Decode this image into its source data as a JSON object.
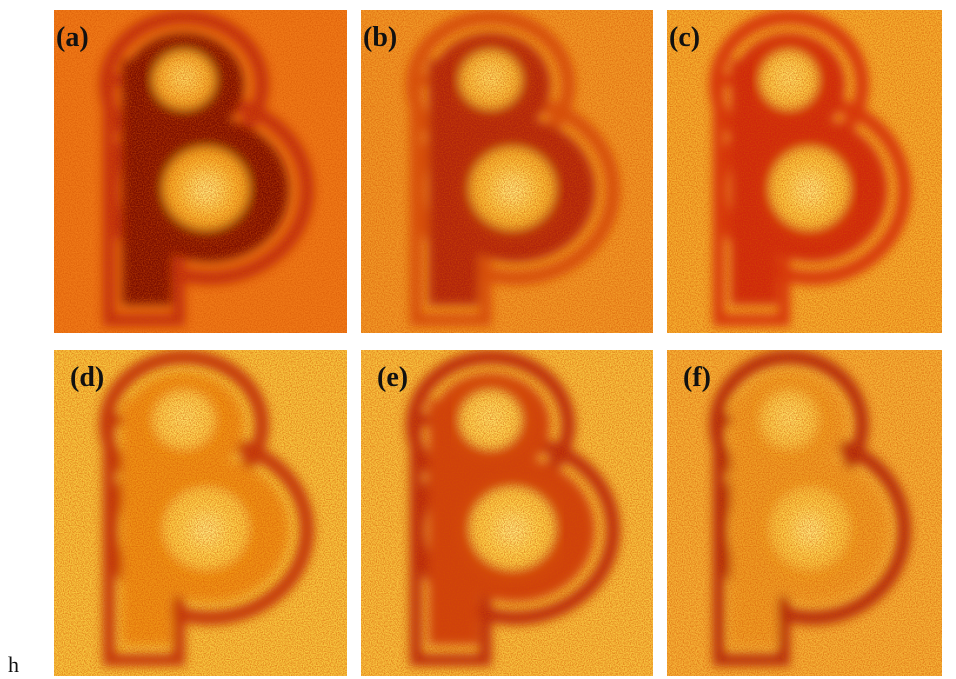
{
  "panels": [
    {
      "label": "(a)"
    },
    {
      "label": "(b)"
    },
    {
      "label": "(c)"
    },
    {
      "label": "(d)"
    },
    {
      "label": "(e)"
    },
    {
      "label": "(f)"
    }
  ],
  "footnote": "h"
}
